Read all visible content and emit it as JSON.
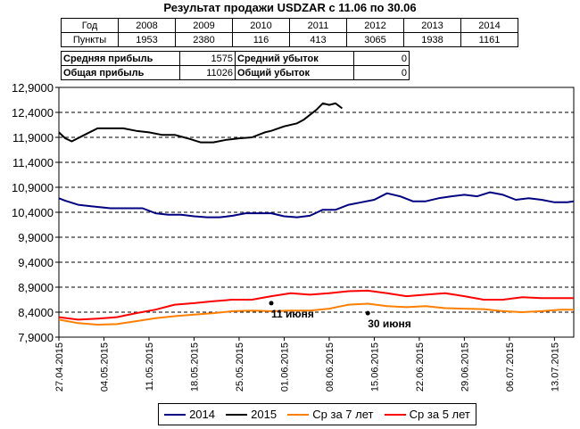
{
  "title": "Результат продажи USDZAR с 11.06 по 30.06",
  "years_table": {
    "header": "Год",
    "points_label": "Пункты",
    "years": [
      "2008",
      "2009",
      "2010",
      "2011",
      "2012",
      "2013",
      "2014"
    ],
    "points": [
      "1953",
      "2380",
      "116",
      "413",
      "3065",
      "1938",
      "1161"
    ]
  },
  "profit_table": {
    "avg_profit_label": "Средняя прибыль",
    "avg_profit": "1575",
    "avg_loss_label": "Средний убыток",
    "avg_loss": "0",
    "total_profit_label": "Общая прибыль",
    "total_profit": "11026",
    "total_loss_label": "Общий убыток",
    "total_loss": "0"
  },
  "colors": {
    "s2014": "#000080",
    "s2015": "#000000",
    "avg7": "#ff8000",
    "avg5": "#ff0000",
    "grid": "#000000"
  },
  "chart_data": {
    "type": "line",
    "ylim": [
      7.9,
      12.9
    ],
    "y_ticks": [
      "7,9000",
      "8,4000",
      "8,9000",
      "9,4000",
      "9,9000",
      "10,4000",
      "10,9000",
      "11,4000",
      "11,9000",
      "12,4000",
      "12,9000"
    ],
    "x_labels": [
      "27.04.2015",
      "04.05.2015",
      "11.05.2015",
      "18.05.2015",
      "25.05.2015",
      "01.06.2015",
      "08.06.2015",
      "15.06.2015",
      "22.06.2015",
      "29.06.2015",
      "06.07.2015",
      "13.07.2015"
    ],
    "xlim": [
      0,
      80
    ],
    "grid": "horizontal dashed",
    "legend_position": "bottom",
    "annotations": [
      {
        "text": "11 июня",
        "x": 33,
        "y": 8.58
      },
      {
        "text": "30 июня",
        "x": 48,
        "y": 8.38
      }
    ],
    "series": [
      {
        "name": "2014",
        "key": "s2014",
        "x": [
          0,
          1,
          3,
          5,
          8,
          11,
          13,
          15,
          17,
          19,
          21,
          23,
          25,
          27,
          29,
          31,
          33,
          35,
          37,
          39,
          41,
          43,
          45,
          47,
          49,
          51,
          53,
          55,
          57,
          59,
          61,
          63,
          65,
          67,
          69,
          71,
          73,
          75,
          77,
          79,
          80
        ],
        "y": [
          10.68,
          10.63,
          10.55,
          10.52,
          10.48,
          10.48,
          10.48,
          10.38,
          10.35,
          10.35,
          10.32,
          10.3,
          10.3,
          10.33,
          10.38,
          10.38,
          10.38,
          10.32,
          10.3,
          10.33,
          10.45,
          10.45,
          10.55,
          10.6,
          10.65,
          10.78,
          10.72,
          10.62,
          10.62,
          10.68,
          10.72,
          10.75,
          10.72,
          10.8,
          10.75,
          10.65,
          10.68,
          10.65,
          10.6,
          10.6,
          10.62
        ]
      },
      {
        "name": "2015",
        "key": "s2015",
        "x": [
          0,
          1,
          2,
          4,
          6,
          8,
          10,
          12,
          14,
          16,
          18,
          20,
          22,
          24,
          26,
          28,
          30,
          31,
          32,
          33,
          35,
          37,
          38,
          39,
          40,
          41,
          42,
          43,
          44
        ],
        "y": [
          12.0,
          11.88,
          11.82,
          11.95,
          12.08,
          12.08,
          12.08,
          12.03,
          12.0,
          11.95,
          11.95,
          11.88,
          11.8,
          11.8,
          11.85,
          11.88,
          11.9,
          11.95,
          12.0,
          12.03,
          12.12,
          12.18,
          12.25,
          12.35,
          12.45,
          12.58,
          12.55,
          12.58,
          12.48
        ]
      },
      {
        "name": "Ср за 7 лет",
        "key": "avg7",
        "x": [
          0,
          3,
          6,
          9,
          12,
          15,
          18,
          21,
          24,
          27,
          30,
          33,
          36,
          39,
          42,
          45,
          48,
          51,
          54,
          57,
          60,
          63,
          66,
          69,
          72,
          75,
          78,
          80
        ],
        "y": [
          8.25,
          8.18,
          8.15,
          8.16,
          8.22,
          8.28,
          8.32,
          8.35,
          8.38,
          8.42,
          8.43,
          8.42,
          8.43,
          8.43,
          8.47,
          8.55,
          8.57,
          8.52,
          8.5,
          8.52,
          8.48,
          8.47,
          8.46,
          8.42,
          8.4,
          8.42,
          8.45,
          8.45
        ]
      },
      {
        "name": "Ср за 5 лет",
        "key": "avg5",
        "x": [
          0,
          3,
          6,
          9,
          12,
          15,
          18,
          21,
          24,
          27,
          30,
          33,
          36,
          39,
          42,
          45,
          48,
          51,
          54,
          57,
          60,
          63,
          66,
          69,
          72,
          75,
          78,
          80
        ],
        "y": [
          8.3,
          8.25,
          8.27,
          8.3,
          8.38,
          8.45,
          8.55,
          8.58,
          8.62,
          8.65,
          8.65,
          8.72,
          8.78,
          8.75,
          8.78,
          8.82,
          8.83,
          8.78,
          8.72,
          8.75,
          8.78,
          8.72,
          8.65,
          8.65,
          8.7,
          8.68,
          8.68,
          8.68
        ]
      }
    ]
  }
}
